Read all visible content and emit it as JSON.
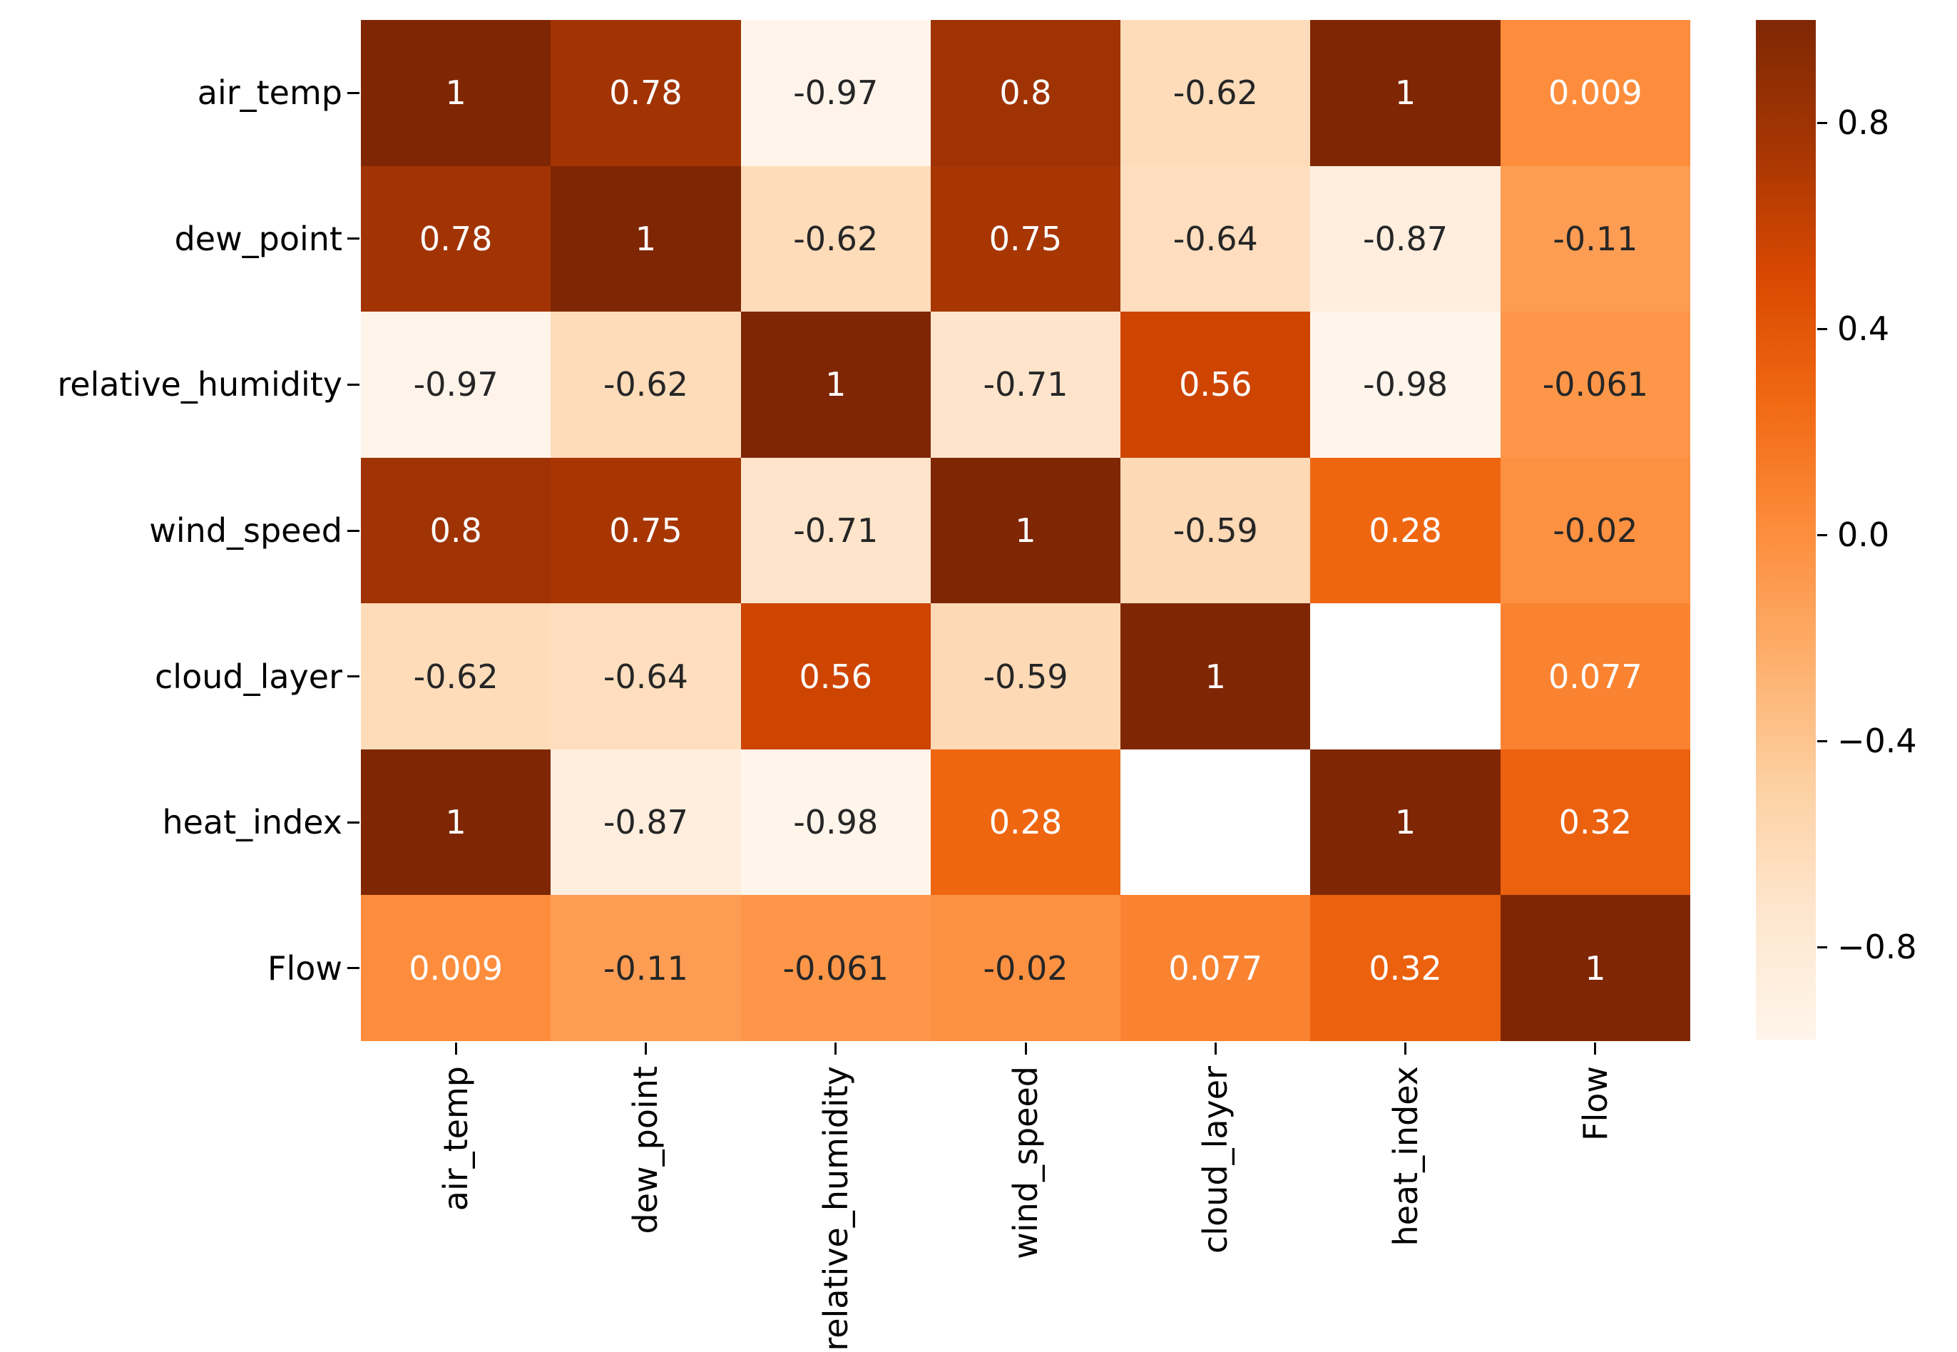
{
  "figure": {
    "background": "#ffffff",
    "tick_color": "#000000",
    "tick_label_color": "#000000"
  },
  "chart_data": {
    "type": "heatmap",
    "title": "",
    "x_tick_labels": [
      "air_temp",
      "dew_point",
      "relative_humidity",
      "wind_speed",
      "cloud_layer",
      "heat_index",
      "Flow"
    ],
    "y_tick_labels": [
      "air_temp",
      "dew_point",
      "relative_humidity",
      "wind_speed",
      "cloud_layer",
      "heat_index",
      "Flow"
    ],
    "matrix": [
      [
        1,
        0.78,
        -0.97,
        0.8,
        -0.62,
        1,
        0.009
      ],
      [
        0.78,
        1,
        -0.62,
        0.75,
        -0.64,
        -0.87,
        -0.11
      ],
      [
        -0.97,
        -0.62,
        1,
        -0.71,
        0.56,
        -0.98,
        -0.061
      ],
      [
        0.8,
        0.75,
        -0.71,
        1,
        -0.59,
        0.28,
        -0.02
      ],
      [
        -0.62,
        -0.64,
        0.56,
        -0.59,
        1,
        null,
        0.077
      ],
      [
        1,
        -0.87,
        -0.98,
        0.28,
        null,
        1,
        0.32
      ],
      [
        0.009,
        -0.11,
        -0.061,
        -0.02,
        0.077,
        0.32,
        1
      ]
    ],
    "cell_labels": [
      [
        "1",
        "0.78",
        "-0.97",
        "0.8",
        "-0.62",
        "1",
        "0.009"
      ],
      [
        "0.78",
        "1",
        "-0.62",
        "0.75",
        "-0.64",
        "-0.87",
        "-0.11"
      ],
      [
        "-0.97",
        "-0.62",
        "1",
        "-0.71",
        "0.56",
        "-0.98",
        "-0.061"
      ],
      [
        "0.8",
        "0.75",
        "-0.71",
        "1",
        "-0.59",
        "0.28",
        "-0.02"
      ],
      [
        "-0.62",
        "-0.64",
        "0.56",
        "-0.59",
        "1",
        "",
        "0.077"
      ],
      [
        "1",
        "-0.87",
        "-0.98",
        "0.28",
        "",
        "1",
        "0.32"
      ],
      [
        "0.009",
        "-0.11",
        "-0.061",
        "-0.02",
        "0.077",
        "0.32",
        "1"
      ]
    ],
    "vmin": -0.98,
    "vmax": 1.0,
    "colormap": {
      "name": "Oranges",
      "anchors": [
        {
          "t": 0.0,
          "color": "#fff5eb"
        },
        {
          "t": 0.125,
          "color": "#fee6ce"
        },
        {
          "t": 0.25,
          "color": "#fdd0a2"
        },
        {
          "t": 0.375,
          "color": "#fdae6b"
        },
        {
          "t": 0.5,
          "color": "#fd8d3c"
        },
        {
          "t": 0.625,
          "color": "#f16913"
        },
        {
          "t": 0.75,
          "color": "#d94801"
        },
        {
          "t": 0.875,
          "color": "#a63603"
        },
        {
          "t": 1.0,
          "color": "#7f2704"
        }
      ]
    },
    "nan_color": "#ffffff",
    "annotation_colors": {
      "light": "#ffffff",
      "dark": "#262626",
      "luminance_threshold": 0.408
    },
    "colorbar": {
      "position": "right",
      "ticks": [
        {
          "value": 0.8,
          "label": "0.8"
        },
        {
          "value": 0.4,
          "label": "0.4"
        },
        {
          "value": 0.0,
          "label": "0.0"
        },
        {
          "value": -0.4,
          "label": "−0.4"
        },
        {
          "value": -0.8,
          "label": "−0.8"
        }
      ]
    },
    "grid_lines": false,
    "legend": false
  }
}
